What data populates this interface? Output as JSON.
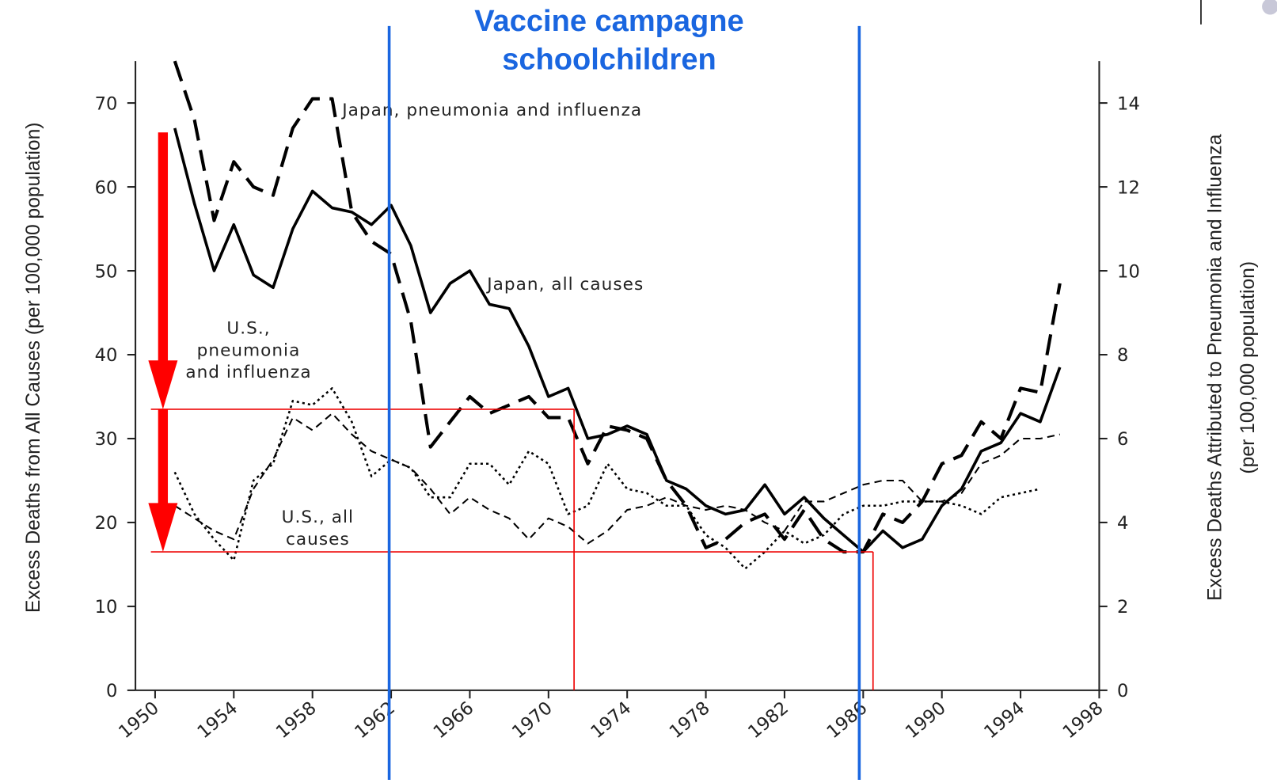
{
  "chart_data": {
    "type": "line",
    "title": [
      "Vaccine campagne",
      "schoolchildren"
    ],
    "ylabel": "Excess Deaths from All Causes (per 100,000 population)",
    "y2label": [
      "Excess Deaths Attributed to Pneumonia and Influenza",
      "(per 100,000 population)"
    ],
    "x": [
      1951,
      1952,
      1953,
      1954,
      1955,
      1956,
      1957,
      1958,
      1959,
      1960,
      1961,
      1962,
      1963,
      1964,
      1965,
      1966,
      1967,
      1968,
      1969,
      1970,
      1971,
      1972,
      1973,
      1974,
      1975,
      1976,
      1977,
      1978,
      1979,
      1980,
      1981,
      1982,
      1983,
      1984,
      1985,
      1986,
      1987,
      1988,
      1989,
      1990,
      1991,
      1992,
      1993,
      1994,
      1995,
      1996
    ],
    "xlim": [
      1949,
      1998
    ],
    "xticks": [
      1950,
      1954,
      1958,
      1962,
      1966,
      1970,
      1974,
      1978,
      1982,
      1986,
      1990,
      1994,
      1998
    ],
    "ylim": [
      0,
      75
    ],
    "yticks": [
      0,
      10,
      20,
      30,
      40,
      50,
      60,
      70
    ],
    "y2lim": [
      0,
      15
    ],
    "y2ticks": [
      0,
      2,
      4,
      6,
      8,
      10,
      12,
      14
    ],
    "series": [
      {
        "name": [
          "Japan, pneumonia and influenza"
        ],
        "color": "#000000",
        "style": "long-dash",
        "axis": "y2",
        "values": [
          15,
          13.6,
          11.2,
          12.6,
          12,
          11.8,
          13.4,
          14.1,
          14.1,
          11.4,
          10.7,
          10.4,
          8.8,
          5.8,
          6.4,
          7,
          6.6,
          6.8,
          7,
          6.5,
          6.5,
          5.4,
          6.3,
          6.2,
          6,
          5,
          4.4,
          3.4,
          3.6,
          4,
          4.2,
          3.6,
          4.3,
          3.6,
          3.3,
          3.3,
          4.2,
          4,
          4.5,
          5.4,
          5.6,
          6.4,
          6,
          7.2,
          7.1,
          9.7
        ]
      },
      {
        "name": [
          "Japan, all causes"
        ],
        "color": "#000000",
        "style": "solid",
        "values": [
          67,
          58,
          50,
          55.5,
          49.5,
          48,
          55,
          59.5,
          57.5,
          57,
          55.5,
          57.8,
          53,
          45,
          48.5,
          50,
          46,
          45.5,
          41,
          35,
          36,
          30,
          30.5,
          31.5,
          30.5,
          25,
          24,
          22,
          21,
          21.5,
          24.5,
          21,
          23,
          20.5,
          18.5,
          16.5,
          19,
          17,
          18,
          22,
          24,
          28.5,
          29.5,
          33,
          32,
          38.5
        ]
      },
      {
        "name": [
          "U.S.,",
          "pneumonia",
          "and influenza"
        ],
        "color": "#000000",
        "style": "dotted",
        "axis": "y2",
        "values": [
          5.2,
          4.2,
          3.6,
          3.1,
          5,
          5.4,
          6.9,
          6.8,
          7.2,
          6.4,
          5.1,
          5.5,
          5.3,
          4.6,
          4.6,
          5.4,
          5.4,
          4.9,
          5.7,
          5.4,
          4.2,
          4.4,
          5.4,
          4.8,
          4.7,
          4.4,
          4.4,
          3.7,
          3.4,
          2.9,
          3.3,
          3.8,
          3.5,
          3.7,
          4.2,
          4.4,
          4.4,
          4.5,
          4.5,
          4.5,
          4.4,
          4.2,
          4.6,
          4.7,
          4.8,
          null
        ]
      },
      {
        "name": [
          "U.S., all",
          "causes"
        ],
        "color": "#000000",
        "style": "dashed",
        "values": [
          22,
          20.5,
          19,
          18,
          24,
          27.5,
          32.5,
          31,
          33,
          30.5,
          28.5,
          27.5,
          26.5,
          24,
          21,
          23,
          21.5,
          20.5,
          18,
          20.5,
          19.5,
          17.5,
          19,
          21.5,
          22,
          23,
          22,
          21.5,
          22,
          21.5,
          20,
          19,
          22.5,
          22.5,
          23.5,
          24.5,
          25,
          25,
          22.5,
          22.5,
          23.5,
          27,
          28,
          30,
          30,
          30.5
        ]
      }
    ],
    "vertical_lines": [
      {
        "x": 1961.9,
        "color": "#1a66e0"
      },
      {
        "x": 1985.8,
        "color": "#1a66e0"
      }
    ],
    "red_guides": [
      {
        "y": 33.5,
        "x": 1971.3
      },
      {
        "y": 16.5,
        "x": 1986.5
      }
    ],
    "red_arrows": [
      {
        "from": 66.5,
        "to": 33.5,
        "x": 1950.4
      },
      {
        "from": 33.5,
        "to": 16.5,
        "x": 1950.4
      }
    ]
  }
}
